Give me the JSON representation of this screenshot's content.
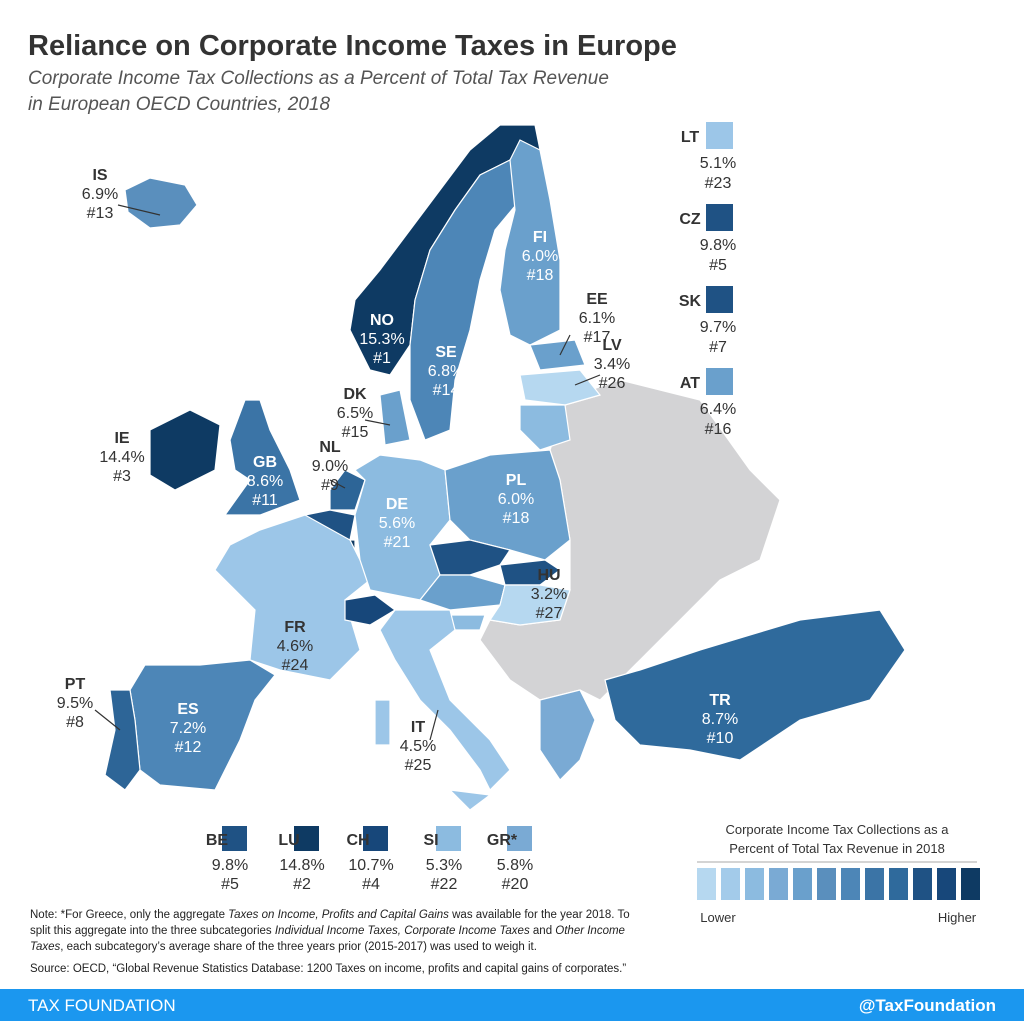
{
  "header": {
    "title": "Reliance on Corporate Income Taxes in Europe",
    "subtitle": [
      "Corporate Income Tax Collections as a Percent of Total Tax Revenue",
      "in European OECD Countries, 2018"
    ]
  },
  "countries": [
    {
      "code": "IS",
      "value": "6.9%",
      "rank": "#13"
    },
    {
      "code": "NO",
      "value": "15.3%",
      "rank": "#1"
    },
    {
      "code": "SE",
      "value": "6.8%",
      "rank": "#14"
    },
    {
      "code": "FI",
      "value": "6.0%",
      "rank": "#18"
    },
    {
      "code": "EE",
      "value": "6.1%",
      "rank": "#17"
    },
    {
      "code": "LV",
      "value": "3.4%",
      "rank": "#26"
    },
    {
      "code": "DK",
      "value": "6.5%",
      "rank": "#15"
    },
    {
      "code": "IE",
      "value": "14.4%",
      "rank": "#3"
    },
    {
      "code": "GB",
      "value": "8.6%",
      "rank": "#11"
    },
    {
      "code": "NL",
      "value": "9.0%",
      "rank": "#9"
    },
    {
      "code": "DE",
      "value": "5.6%",
      "rank": "#21"
    },
    {
      "code": "PL",
      "value": "6.0%",
      "rank": "#18"
    },
    {
      "code": "HU",
      "value": "3.2%",
      "rank": "#27"
    },
    {
      "code": "FR",
      "value": "4.6%",
      "rank": "#24"
    },
    {
      "code": "PT",
      "value": "9.5%",
      "rank": "#8"
    },
    {
      "code": "ES",
      "value": "7.2%",
      "rank": "#12"
    },
    {
      "code": "IT",
      "value": "4.5%",
      "rank": "#25"
    },
    {
      "code": "TR",
      "value": "8.7%",
      "rank": "#10"
    }
  ],
  "side_insets": [
    {
      "code": "LT",
      "value": "5.1%",
      "rank": "#23"
    },
    {
      "code": "CZ",
      "value": "9.8%",
      "rank": "#5"
    },
    {
      "code": "SK",
      "value": "9.7%",
      "rank": "#7"
    },
    {
      "code": "AT",
      "value": "6.4%",
      "rank": "#16"
    }
  ],
  "bottom_insets": [
    {
      "code": "BE",
      "value": "9.8%",
      "rank": "#5"
    },
    {
      "code": "LU",
      "value": "14.8%",
      "rank": "#2"
    },
    {
      "code": "CH",
      "value": "10.7%",
      "rank": "#4"
    },
    {
      "code": "SI",
      "value": "5.3%",
      "rank": "#22"
    },
    {
      "code": "GR*",
      "value": "5.8%",
      "rank": "#20"
    }
  ],
  "legend": {
    "title": [
      "Corporate Income Tax Collections as a",
      "Percent of Total Tax Revenue in 2018"
    ],
    "low": "Lower",
    "high": "Higher"
  },
  "note": {
    "parts": [
      "Note: *For Greece, only the aggregate ",
      "Taxes on Income, Profits and Capital Gains",
      " was available for the year 2018. To",
      "split this aggregate into the three subcategories ",
      "Individual Income Taxes, Corporate Income Taxes",
      " and ",
      "Other Income",
      "Taxes",
      ", each subcategory’s average share of the three years prior (2015-2017) was used to weigh it."
    ],
    "source": "Source: OECD, “Global Revenue Statistics Database: 1200 Taxes on income, profits and capital gains of corporates.”"
  },
  "footer": {
    "left": "TAX FOUNDATION",
    "right": "@TaxFoundation"
  }
}
